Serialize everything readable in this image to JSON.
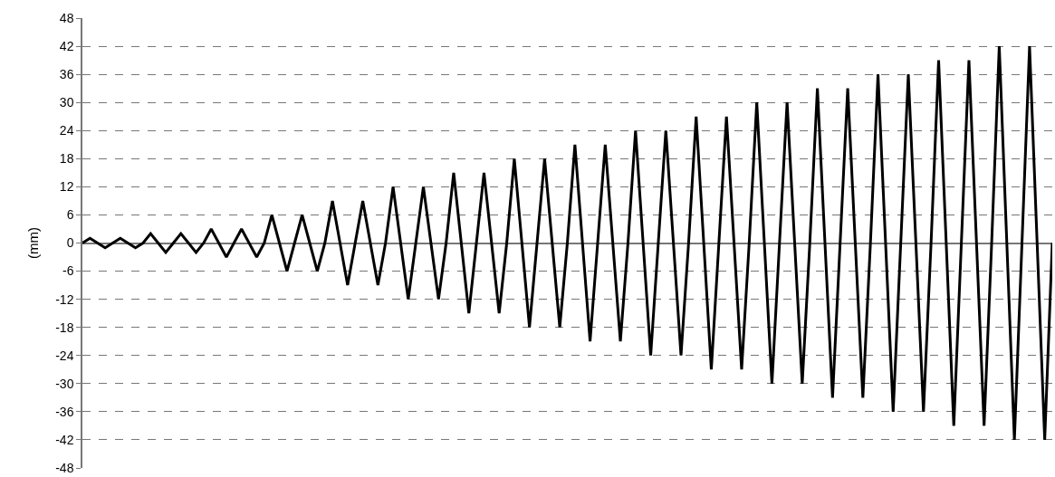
{
  "chart_data": {
    "type": "line",
    "ylabel": "(mm)",
    "categories": [
      null,
      null,
      null,
      null,
      null,
      null,
      null,
      null,
      null,
      null,
      null,
      null,
      null,
      null,
      null,
      null,
      null,
      null,
      null,
      null,
      null,
      null,
      null,
      null,
      null,
      null,
      null,
      null,
      null,
      null,
      null,
      null,
      null,
      null,
      null,
      null,
      null,
      null,
      null,
      null,
      null,
      null,
      null,
      null,
      null,
      null,
      null,
      null,
      null,
      null,
      null,
      null,
      null,
      null,
      null,
      null,
      null,
      null,
      null,
      null,
      null,
      null,
      null,
      null,
      null,
      null,
      null,
      null,
      null,
      null,
      null,
      null,
      null,
      null,
      null,
      null,
      null,
      null,
      null,
      null,
      null,
      null,
      null,
      null,
      null,
      null,
      null,
      null,
      null,
      null,
      null,
      null,
      null,
      null,
      null,
      null,
      null,
      null,
      null,
      null,
      null,
      null,
      null,
      null,
      null,
      null,
      null,
      null,
      null,
      null,
      null,
      null,
      null,
      null,
      null,
      null,
      null,
      null,
      null,
      null,
      null,
      null,
      null,
      null,
      null,
      null,
      null,
      null,
      null
    ],
    "series": [
      {
        "color": "#000000",
        "values": [
          0,
          1,
          0,
          -1,
          0,
          1,
          0,
          -1,
          0,
          2,
          0,
          -2,
          0,
          2,
          0,
          -2,
          0,
          3,
          0,
          -3,
          0,
          3,
          0,
          -3,
          0,
          6,
          0,
          -6,
          0,
          6,
          0,
          -6,
          0,
          9,
          0,
          -9,
          0,
          9,
          0,
          -9,
          0,
          12,
          0,
          -12,
          0,
          12,
          0,
          -12,
          0,
          15,
          0,
          -15,
          0,
          15,
          0,
          -15,
          0,
          18,
          0,
          -18,
          0,
          18,
          0,
          -18,
          0,
          21,
          0,
          -21,
          0,
          21,
          0,
          -21,
          0,
          24,
          0,
          -24,
          0,
          24,
          0,
          -24,
          0,
          27,
          0,
          -27,
          0,
          27,
          0,
          -27,
          0,
          30,
          0,
          -30,
          0,
          30,
          0,
          -30,
          0,
          33,
          0,
          -33,
          0,
          33,
          0,
          -33,
          0,
          36,
          0,
          -36,
          0,
          36,
          0,
          -36,
          0,
          39,
          0,
          -39,
          0,
          39,
          0,
          -39,
          0,
          42,
          0,
          -42,
          0,
          42,
          0,
          -42,
          0
        ]
      }
    ],
    "ylim": [
      -48,
      48
    ],
    "yticks": [
      -48,
      -42,
      -36,
      -30,
      -24,
      -18,
      -12,
      -6,
      0,
      6,
      12,
      18,
      24,
      30,
      36,
      42,
      48
    ],
    "grid": "y",
    "tick_labels": "y",
    "marker": "none",
    "line_style": "solid"
  }
}
